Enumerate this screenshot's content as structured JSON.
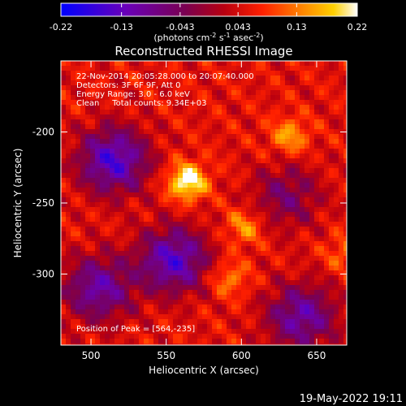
{
  "colorbar": {
    "ticks": [
      "-0.22",
      "-0.13",
      "-0.043",
      "0.043",
      "0.13",
      "0.22"
    ],
    "range": [
      -0.22,
      0.22
    ],
    "unit_main": "(photons cm",
    "unit_exp1": "-2",
    "unit_mid": " s",
    "unit_exp2": "-1",
    "unit_end": " asec",
    "unit_exp3": "-2",
    "unit_close": ")"
  },
  "chart_data": {
    "type": "heatmap",
    "title": "Reconstructed RHESSI Image",
    "xlabel": "Heliocentric X (arcsec)",
    "ylabel": "Heliocentric Y (arcsec)",
    "xlim": [
      480,
      670
    ],
    "ylim": [
      -350,
      -150
    ],
    "xticks": [
      500,
      550,
      600,
      650
    ],
    "yticks": [
      -200,
      -250,
      -300
    ],
    "annotations": [
      "22-Nov-2014 20:05:28.000 to 20:07:40.000",
      "Detectors: 3F 6F 9F, Att 0",
      "Energy Range: 3.0 - 6.0 keV",
      "Clean     Total counts: 9.34E+03"
    ],
    "peak_label": "Position of Peak = [564,-235]",
    "peak": [
      564,
      -235
    ],
    "sources": [
      {
        "x": 564,
        "y": -235,
        "value": 0.22
      },
      {
        "x": 632,
        "y": -203,
        "value": 0.14
      },
      {
        "x": 602,
        "y": -267,
        "value": 0.13
      },
      {
        "x": 592,
        "y": -303,
        "value": 0.12
      },
      {
        "x": 668,
        "y": -285,
        "value": 0.1
      }
    ],
    "negative_regions": [
      {
        "x": 515,
        "y": -220,
        "value": -0.16
      },
      {
        "x": 555,
        "y": -290,
        "value": -0.15
      },
      {
        "x": 505,
        "y": -310,
        "value": -0.12
      },
      {
        "x": 640,
        "y": -330,
        "value": -0.12
      },
      {
        "x": 630,
        "y": -245,
        "value": -0.06
      }
    ]
  },
  "timestamp": "19-May-2022 19:11"
}
